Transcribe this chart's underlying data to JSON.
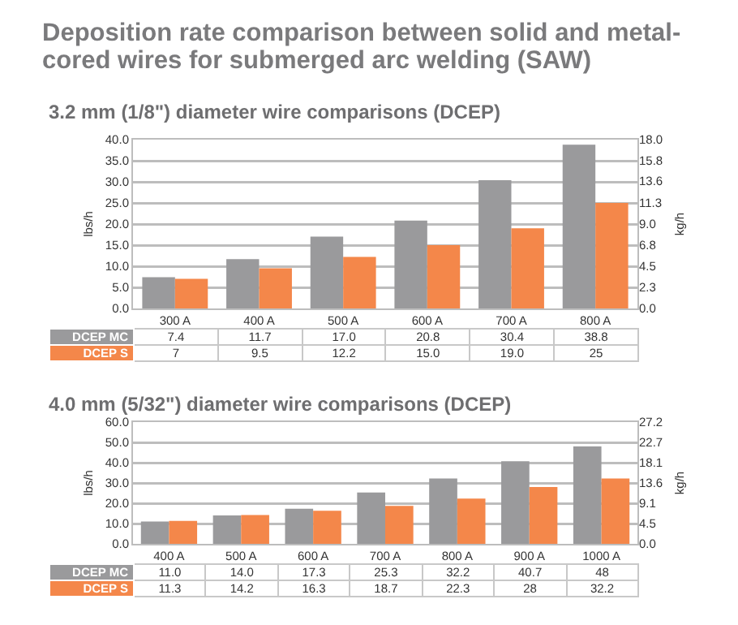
{
  "chart_data": [
    {
      "type": "bar",
      "title": "Deposition rate comparison between solid and metal-cored wires for submerged arc welding (SAW)",
      "subtitle": "3.2 mm (1/8\") diameter wire comparisons (DCEP)",
      "ylabel": "lbs/h",
      "y2label": "kg/h",
      "categories": [
        "300 A",
        "400 A",
        "500 A",
        "600 A",
        "700 A",
        "800 A"
      ],
      "series": [
        {
          "name": "DCEP MC",
          "color": "#9a9a9c",
          "values": [
            7.4,
            11.7,
            17.0,
            20.8,
            30.4,
            38.8
          ],
          "value_labels": [
            "7.4",
            "11.7",
            "17.0",
            "20.8",
            "30.4",
            "38.8"
          ]
        },
        {
          "name": "DCEP S",
          "color": "#f4874a",
          "values": [
            7,
            9.5,
            12.2,
            15.0,
            19.0,
            25
          ],
          "value_labels": [
            "7",
            "9.5",
            "12.2",
            "15.0",
            "19.0",
            "25"
          ]
        }
      ],
      "ylim": [
        0,
        40
      ],
      "yticks": [
        {
          "value": 0,
          "label": "0.0"
        },
        {
          "value": 5,
          "label": "5.0"
        },
        {
          "value": 10,
          "label": "10.0"
        },
        {
          "value": 15,
          "label": "15.0"
        },
        {
          "value": 20,
          "label": "20.0"
        },
        {
          "value": 25,
          "label": "25.0"
        },
        {
          "value": 30,
          "label": "30.0"
        },
        {
          "value": 35,
          "label": "35.0"
        },
        {
          "value": 40,
          "label": "40.0"
        }
      ],
      "y2lim": [
        0,
        18
      ],
      "y2ticks": [
        {
          "value": 0,
          "label": "0.0"
        },
        {
          "value": 2.3,
          "label": "2.3"
        },
        {
          "value": 4.5,
          "label": "4.5"
        },
        {
          "value": 6.8,
          "label": "6.8"
        },
        {
          "value": 9,
          "label": "9.0"
        },
        {
          "value": 11.3,
          "label": "11.3"
        },
        {
          "value": 13.6,
          "label": "13.6"
        },
        {
          "value": 15.8,
          "label": "15.8"
        },
        {
          "value": 18,
          "label": "18.0"
        }
      ],
      "grid": "y",
      "legend": false
    },
    {
      "type": "bar",
      "title": "4.0 mm (5/32\") diameter wire comparisons (DCEP)",
      "ylabel": "lbs/h",
      "y2label": "kg/h",
      "categories": [
        "400 A",
        "500 A",
        "600 A",
        "700 A",
        "800 A",
        "900 A",
        "1000 A"
      ],
      "series": [
        {
          "name": "DCEP MC",
          "color": "#9a9a9c",
          "values": [
            11.0,
            14.0,
            17.3,
            25.3,
            32.2,
            40.7,
            48
          ],
          "value_labels": [
            "11.0",
            "14.0",
            "17.3",
            "25.3",
            "32.2",
            "40.7",
            "48"
          ]
        },
        {
          "name": "DCEP S",
          "color": "#f4874a",
          "values": [
            11.3,
            14.2,
            16.3,
            18.7,
            22.3,
            28,
            32.2
          ],
          "value_labels": [
            "11.3",
            "14.2",
            "16.3",
            "18.7",
            "22.3",
            "28",
            "32.2"
          ]
        }
      ],
      "ylim": [
        0,
        60
      ],
      "yticks": [
        {
          "value": 0,
          "label": "0.0"
        },
        {
          "value": 10,
          "label": "10.0"
        },
        {
          "value": 20,
          "label": "20.0"
        },
        {
          "value": 30,
          "label": "30.0"
        },
        {
          "value": 40,
          "label": "40.0"
        },
        {
          "value": 50,
          "label": "50.0"
        },
        {
          "value": 60,
          "label": "60.0"
        }
      ],
      "y2lim": [
        0,
        27.2
      ],
      "y2ticks": [
        {
          "value": 0,
          "label": "0.0"
        },
        {
          "value": 4.5,
          "label": "4.5"
        },
        {
          "value": 9.1,
          "label": "9.1"
        },
        {
          "value": 13.6,
          "label": "13.6"
        },
        {
          "value": 18.1,
          "label": "18.1"
        },
        {
          "value": 22.7,
          "label": "22.7"
        },
        {
          "value": 27.2,
          "label": "27.2"
        }
      ],
      "grid": "y",
      "legend": false
    }
  ]
}
